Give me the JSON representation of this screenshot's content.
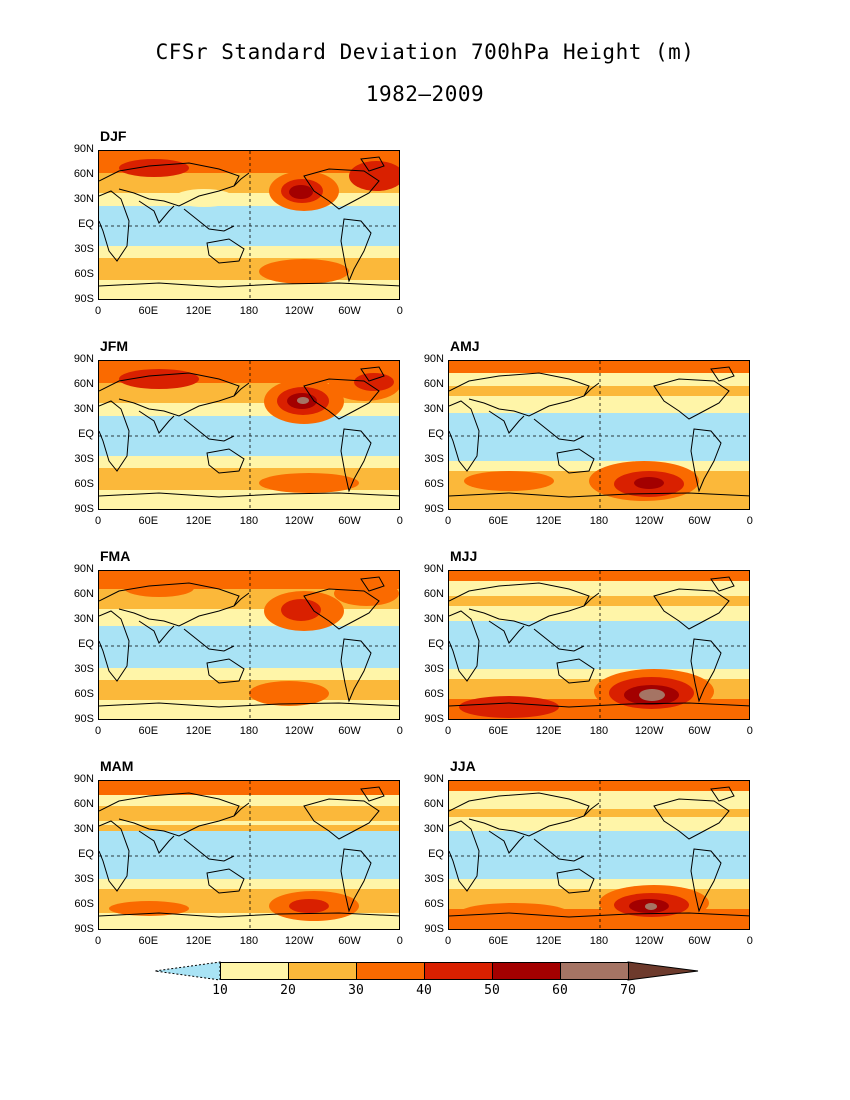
{
  "title": "CFSr Standard Deviation 700hPa Height (m)",
  "subtitle": "1982–2009",
  "lat_ticks": [
    "90N",
    "60N",
    "30N",
    "EQ",
    "30S",
    "60S",
    "90S"
  ],
  "lon_ticks": [
    "0",
    "60E",
    "120E",
    "180",
    "120W",
    "60W",
    "0"
  ],
  "panels": [
    {
      "label": "DJF",
      "max_region": "north pacific",
      "max_level": "50"
    },
    {
      "label": "JFM",
      "max_region": "north pacific",
      "max_level": "60"
    },
    {
      "label": "AMJ",
      "max_region": "south pacific",
      "max_level": "50"
    },
    {
      "label": "FMA",
      "max_region": "north pacific",
      "max_level": "50"
    },
    {
      "label": "MJJ",
      "max_region": "south pacific",
      "max_level": "60"
    },
    {
      "label": "MAM",
      "max_region": "south pacific",
      "max_level": "50"
    },
    {
      "label": "JJA",
      "max_region": "south pacific",
      "max_level": "60"
    }
  ],
  "colorbar": {
    "labels": [
      "10",
      "20",
      "30",
      "40",
      "50",
      "60",
      "70"
    ],
    "colors": [
      "#a9e3f5",
      "#fff5a8",
      "#fbb83a",
      "#fa6a00",
      "#d92000",
      "#a30000",
      "#a57464",
      "#6d3a2c"
    ]
  }
}
